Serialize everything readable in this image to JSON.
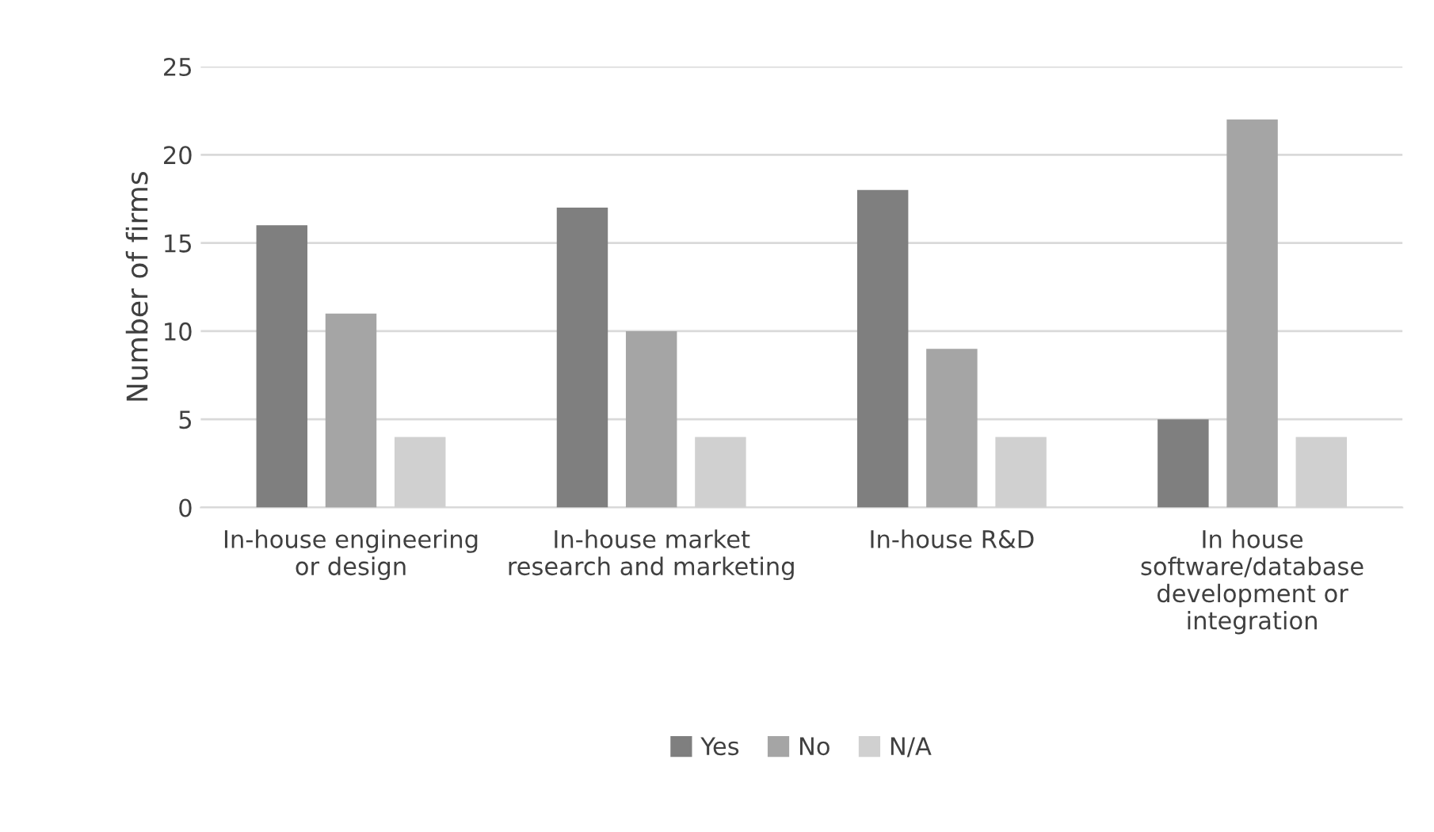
{
  "chart_data": {
    "type": "bar",
    "ylabel": "Number of firms",
    "categories": [
      "In-house engineering or design",
      "In-house market research and marketing",
      "In-house R&D",
      "In house software/database development or integration"
    ],
    "series": [
      {
        "name": "Yes",
        "color": "#7f7f7f",
        "values": [
          16,
          17,
          18,
          5
        ]
      },
      {
        "name": "No",
        "color": "#a5a5a5",
        "values": [
          11,
          10,
          9,
          22
        ]
      },
      {
        "name": "N/A",
        "color": "#d0d0d0",
        "values": [
          4,
          4,
          4,
          4
        ]
      }
    ],
    "ylim": [
      0,
      25
    ],
    "yticks": [
      0,
      5,
      10,
      15,
      20,
      25
    ],
    "grid": "y",
    "legend": "bottom"
  }
}
